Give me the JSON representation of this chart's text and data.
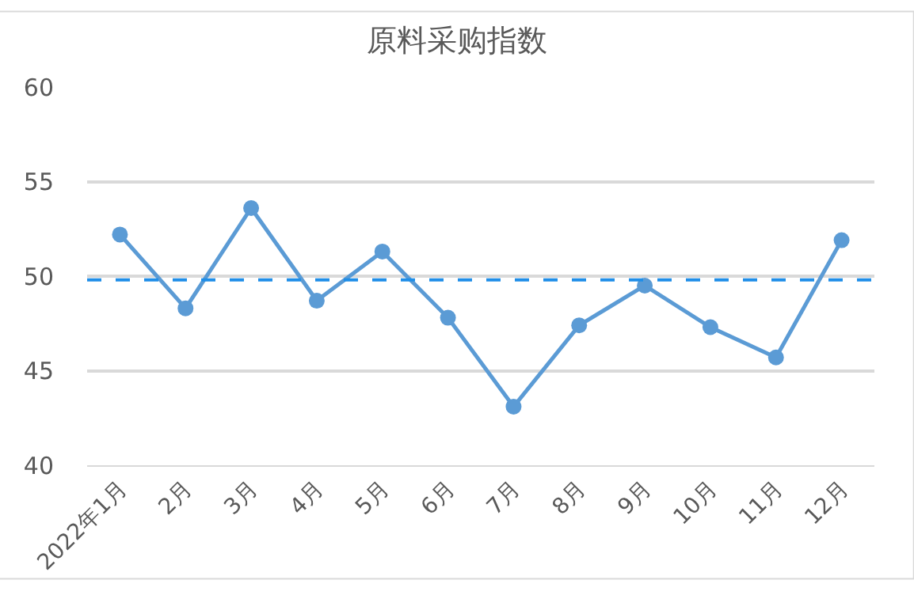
{
  "chart_data": {
    "type": "line",
    "title": "原料采购指数",
    "categories": [
      "2022年1月",
      "2月",
      "3月",
      "4月",
      "5月",
      "6月",
      "7月",
      "8月",
      "9月",
      "10月",
      "11月",
      "12月"
    ],
    "series": [
      {
        "color": "#5b9bd5",
        "values": [
          52.2,
          48.3,
          53.6,
          48.7,
          51.3,
          47.8,
          43.1,
          47.4,
          49.5,
          47.3,
          45.7,
          51.9
        ]
      }
    ],
    "ylim": [
      40,
      60
    ],
    "yticks": [
      40,
      45,
      50,
      55,
      60
    ],
    "grid": "y",
    "marker": "circle",
    "line_style": "solid",
    "legend": false,
    "ref_lines": [
      {
        "axis": "y",
        "value": 49.8,
        "color": "#1f8ee8",
        "line_style": "dashed"
      }
    ]
  }
}
